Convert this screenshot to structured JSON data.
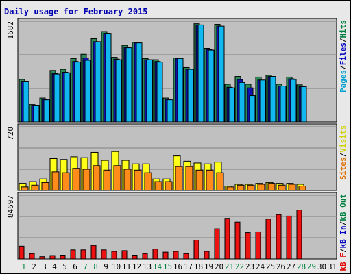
{
  "chart_data": {
    "type": "bar",
    "title": "Daily usage for February 2015",
    "days": [
      "1",
      "2",
      "3",
      "4",
      "5",
      "6",
      "7",
      "8",
      "9",
      "10",
      "11",
      "12",
      "13",
      "14",
      "15",
      "16",
      "17",
      "18",
      "19",
      "20",
      "21",
      "22",
      "23",
      "24",
      "25",
      "26",
      "27",
      "28",
      "29",
      "30",
      "31"
    ],
    "weekend_days": [
      1,
      7,
      8,
      14,
      15,
      21,
      22,
      28,
      29
    ],
    "panels": [
      {
        "id": "hits",
        "max_label": "1682",
        "ymax": 1682,
        "legend": [
          {
            "text": "Pages",
            "color": "#00a0d0"
          },
          {
            "text": "/",
            "color": "#000000"
          },
          {
            "text": "Files",
            "color": "#0000c0"
          },
          {
            "text": "/",
            "color": "#000000"
          },
          {
            "text": "Hits",
            "color": "#008040"
          }
        ],
        "series": [
          {
            "name": "Hits",
            "color": "#2e8b57",
            "values": [
              710,
              290,
              400,
              860,
              880,
              1060,
              1130,
              1390,
              1510,
              1080,
              1280,
              1330,
              1060,
              1040,
              400,
              1070,
              910,
              1640,
              1230,
              1630,
              630,
              760,
              630,
              750,
              780,
              630,
              750,
              620,
              0,
              0,
              0
            ]
          },
          {
            "name": "Files",
            "color": "#1010b0",
            "values": [
              680,
              270,
              380,
              810,
              830,
              1010,
              1070,
              1340,
              1480,
              1050,
              1250,
              1320,
              1040,
              1010,
              380,
              1060,
              880,
              1620,
              1210,
              1600,
              580,
              710,
              570,
              700,
              760,
              600,
              720,
              590,
              0,
              0,
              0
            ]
          },
          {
            "name": "Pages",
            "color": "#10b8ef",
            "values": [
              680,
              270,
              370,
              800,
              820,
              1000,
              1030,
              1340,
              1480,
              1040,
              1240,
              1320,
              1040,
              1000,
              370,
              1060,
              880,
              1620,
              1200,
              1600,
              570,
              660,
              440,
              700,
              760,
              600,
              710,
              590,
              0,
              0,
              0
            ]
          }
        ]
      },
      {
        "id": "visits",
        "max_label": "720",
        "ymax": 720,
        "legend": [
          {
            "text": "Sites",
            "color": "#e07000"
          },
          {
            "text": "/",
            "color": "#000000"
          },
          {
            "text": "Visits",
            "color": "#d0d000"
          }
        ],
        "series": [
          {
            "name": "Visits",
            "color": "#ffff1a",
            "values": [
              80,
              100,
              130,
              360,
              350,
              380,
              370,
              430,
              340,
              440,
              340,
              300,
              300,
              130,
              130,
              390,
              330,
              310,
              300,
              320,
              50,
              70,
              70,
              80,
              90,
              80,
              80,
              70,
              0,
              0,
              0
            ]
          },
          {
            "name": "Sites",
            "color": "#ff8c1a",
            "values": [
              40,
              60,
              90,
              210,
              200,
              250,
              240,
              280,
              230,
              280,
              240,
              230,
              200,
              100,
              100,
              270,
              270,
              230,
              230,
              200,
              40,
              60,
              60,
              70,
              80,
              60,
              70,
              50,
              0,
              0,
              0
            ]
          }
        ]
      },
      {
        "id": "kbytes",
        "max_label": "84697",
        "ymax": 84697,
        "legend": [
          {
            "text": "kB F",
            "color": "#e00000"
          },
          {
            "text": "/",
            "color": "#000000"
          },
          {
            "text": "kB In",
            "color": "#0000c0"
          },
          {
            "text": "/",
            "color": "#000000"
          },
          {
            "text": "kB Out",
            "color": "#008040"
          }
        ],
        "series": [
          {
            "name": "kB F",
            "color": "#ee1111",
            "values": [
              17000,
              7000,
              3000,
              4500,
              5000,
              12000,
              12000,
              18000,
              12000,
              10000,
              11000,
              5000,
              7000,
              13000,
              9000,
              10000,
              7000,
              25000,
              10000,
              40000,
              54000,
              49000,
              35000,
              36000,
              53000,
              59000,
              57000,
              65000,
              0,
              0,
              0
            ]
          }
        ]
      }
    ]
  }
}
